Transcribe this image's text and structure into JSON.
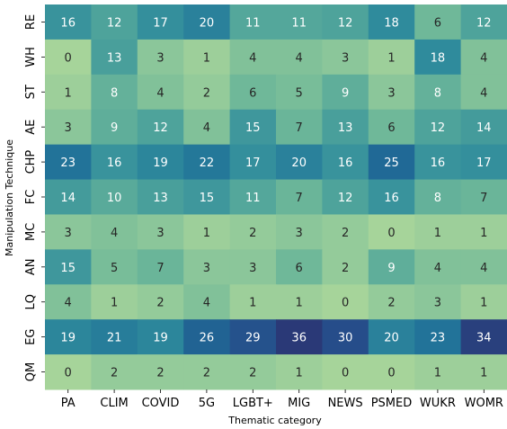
{
  "chart_data": {
    "type": "heatmap",
    "title": "",
    "xlabel": "Thematic category",
    "ylabel": "Manipulation Technique",
    "x_categories": [
      "PA",
      "CLIM",
      "COVID",
      "5G",
      "LGBT+",
      "MIG",
      "NEWS",
      "PSMED",
      "WUKR",
      "WOMR"
    ],
    "y_categories": [
      "RE",
      "WH",
      "ST",
      "AE",
      "CHP",
      "FC",
      "MC",
      "AN",
      "LQ",
      "EG",
      "QM"
    ],
    "values": [
      [
        16,
        12,
        17,
        20,
        11,
        11,
        12,
        18,
        6,
        12
      ],
      [
        0,
        13,
        3,
        1,
        4,
        4,
        3,
        1,
        18,
        4
      ],
      [
        1,
        8,
        4,
        2,
        6,
        5,
        9,
        3,
        8,
        4
      ],
      [
        3,
        9,
        12,
        4,
        15,
        7,
        13,
        6,
        12,
        14
      ],
      [
        23,
        16,
        19,
        22,
        17,
        20,
        16,
        25,
        16,
        17
      ],
      [
        14,
        10,
        13,
        15,
        11,
        7,
        12,
        16,
        8,
        7
      ],
      [
        3,
        4,
        3,
        1,
        2,
        3,
        2,
        0,
        1,
        1
      ],
      [
        15,
        5,
        7,
        3,
        3,
        6,
        2,
        9,
        4,
        4
      ],
      [
        4,
        1,
        2,
        4,
        1,
        1,
        0,
        2,
        3,
        1
      ],
      [
        19,
        21,
        19,
        26,
        29,
        36,
        30,
        20,
        23,
        34
      ],
      [
        0,
        2,
        2,
        2,
        2,
        1,
        0,
        0,
        1,
        1
      ]
    ],
    "value_range": [
      0,
      36
    ],
    "colormap": "crest",
    "colormap_stops": [
      "#a6d49a",
      "#6fb899",
      "#4ea39b",
      "#2f8b9c",
      "#1f6e98",
      "#264d8a",
      "#2a3977"
    ],
    "annotation_colors": {
      "light_text": "#ffffff",
      "dark_text": "#262626"
    },
    "grid": false,
    "legend": "none"
  }
}
